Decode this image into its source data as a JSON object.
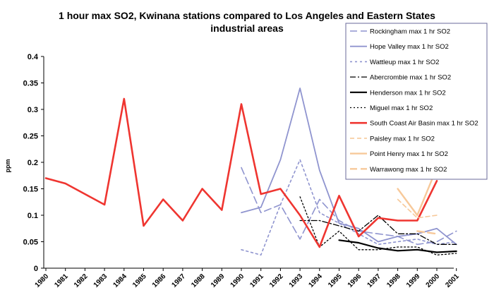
{
  "chart_data": {
    "type": "line",
    "title_lines": [
      "1 hour max SO2, Kwinana stations compared to Los Angeles and Eastern States",
      "industrial areas"
    ],
    "ylabel": "ppm",
    "xlabel": "",
    "ylim": [
      0,
      0.4
    ],
    "yticks": [
      "0",
      "0.05",
      "0.1",
      "0.15",
      "0.2",
      "0.25",
      "0.3",
      "0.35",
      "0.4"
    ],
    "categories": [
      "1980",
      "1981",
      "1982",
      "1983",
      "1984",
      "1985",
      "1986",
      "1987",
      "1988",
      "1989",
      "1990",
      "1991",
      "1992",
      "1993",
      "1994",
      "1995",
      "1996",
      "1997",
      "1998",
      "1999",
      "2000",
      "2001"
    ],
    "grid": false,
    "legend_position": "top-right",
    "series": [
      {
        "name": "Rockingham max 1 hr SO2",
        "color": "#8f94cf",
        "dash": "10 5",
        "width": 1.6,
        "x": [
          1990,
          1991,
          1992,
          1993,
          1994,
          1995,
          1996,
          1997,
          1998,
          1999,
          2000,
          2001
        ],
        "y": [
          0.19,
          0.105,
          0.12,
          0.055,
          0.13,
          0.09,
          0.07,
          0.065,
          0.06,
          0.045,
          0.05,
          0.07
        ]
      },
      {
        "name": "Hope Valley max 1 hr SO2",
        "color": "#8f94cf",
        "dash": "",
        "width": 1.8,
        "x": [
          1990,
          1991,
          1992,
          1993,
          1994,
          1995,
          1996,
          1997,
          1998,
          1999,
          2000,
          2001
        ],
        "y": [
          0.105,
          0.115,
          0.205,
          0.34,
          0.185,
          0.085,
          0.075,
          0.05,
          0.06,
          0.065,
          0.075,
          0.045
        ]
      },
      {
        "name": "Wattleup max 1 hr SO2",
        "color": "#8f94cf",
        "dash": "3 4",
        "width": 1.6,
        "x": [
          1990,
          1991,
          1992,
          1993,
          1994,
          1995,
          1996,
          1997,
          1998,
          1999,
          2000,
          2001
        ],
        "y": [
          0.035,
          0.025,
          0.12,
          0.205,
          0.105,
          0.085,
          0.065,
          0.045,
          0.05,
          0.055,
          0.045,
          0.05
        ]
      },
      {
        "name": "Abercrombie max 1 hr SO2",
        "color": "#000000",
        "dash": "8 3 2 3",
        "width": 1.3,
        "x": [
          1993,
          1994,
          1995,
          1996,
          1997,
          1998,
          1999,
          2000,
          2001
        ],
        "y": [
          0.09,
          0.09,
          0.08,
          0.07,
          0.1,
          0.065,
          0.065,
          0.045,
          0.045
        ]
      },
      {
        "name": "Henderson max 1 hr SO2",
        "color": "#000000",
        "dash": "",
        "width": 2.2,
        "x": [
          1995,
          1996,
          1997,
          1998,
          1999,
          2000,
          2001
        ],
        "y": [
          0.053,
          0.048,
          0.038,
          0.033,
          0.035,
          0.03,
          0.032
        ]
      },
      {
        "name": "Miguel max 1 hr SO2",
        "color": "#000000",
        "dash": "2 3",
        "width": 1.3,
        "x": [
          1993,
          1994,
          1995,
          1996,
          1997,
          1998,
          1999,
          2000,
          2001
        ],
        "y": [
          0.135,
          0.04,
          0.07,
          0.035,
          0.035,
          0.04,
          0.04,
          0.025,
          0.028
        ]
      },
      {
        "name": "South Coast Air Basin max 1 hr SO2",
        "color": "#ef3530",
        "dash": "",
        "width": 2.6,
        "x": [
          1980,
          1981,
          1982,
          1983,
          1984,
          1985,
          1986,
          1987,
          1988,
          1989,
          1990,
          1991,
          1992,
          1993,
          1994,
          1995,
          1996,
          1997,
          1998,
          1999,
          2000
        ],
        "y": [
          0.17,
          0.16,
          0.14,
          0.12,
          0.32,
          0.08,
          0.13,
          0.09,
          0.15,
          0.11,
          0.31,
          0.14,
          0.15,
          0.1,
          0.04,
          0.137,
          0.06,
          0.095,
          0.09,
          0.09,
          0.165
        ]
      },
      {
        "name": "Paisley max 1 hr SO2",
        "color": "#f7c99a",
        "dash": "6 4",
        "width": 1.6,
        "x": [
          1998,
          1999,
          2000
        ],
        "y": [
          0.13,
          0.095,
          0.1
        ]
      },
      {
        "name": "Point Henry max 1 hr SO2",
        "color": "#f7c99a",
        "dash": "",
        "width": 2.4,
        "x": [
          1998,
          1999,
          2000
        ],
        "y": [
          0.15,
          0.1,
          0.19
        ]
      },
      {
        "name": "Warrawong max 1 hr SO2",
        "color": "#f7c99a",
        "dash": "10 5",
        "width": 2.4,
        "x": [
          1999,
          2000
        ],
        "y": [
          0.07,
          0.065
        ]
      }
    ]
  }
}
